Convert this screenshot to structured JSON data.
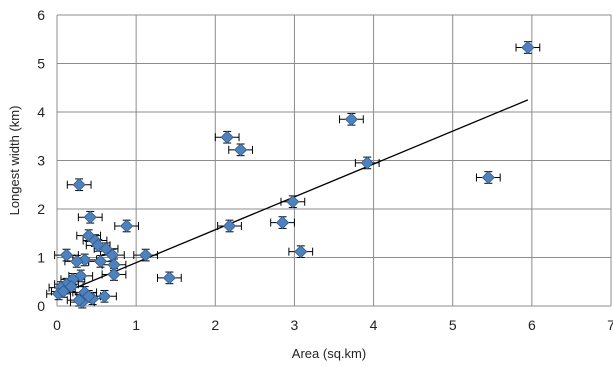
{
  "chart_data": {
    "type": "scatter",
    "title": "",
    "xlabel": "Area (sq.km)",
    "ylabel": "Longest width (km)",
    "xlim": [
      0,
      7
    ],
    "ylim": [
      0,
      6
    ],
    "xticks": [
      0,
      1,
      2,
      3,
      4,
      5,
      6,
      7
    ],
    "yticks": [
      0,
      1,
      2,
      3,
      4,
      5,
      6
    ],
    "grid": true,
    "legend": "none",
    "marker_color": "#4f81bd",
    "marker_edge": "#2f5b8f",
    "error_bar_color": "#000000",
    "trendline_color": "#000000",
    "x_error": 0.15,
    "y_error": 0.12,
    "trendline": {
      "x": [
        0.05,
        5.95
      ],
      "y": [
        0.25,
        4.25
      ]
    },
    "points": [
      {
        "x": 5.95,
        "y": 5.33
      },
      {
        "x": 3.72,
        "y": 3.85
      },
      {
        "x": 3.92,
        "y": 2.95
      },
      {
        "x": 5.45,
        "y": 2.65
      },
      {
        "x": 2.15,
        "y": 3.48
      },
      {
        "x": 2.32,
        "y": 3.22
      },
      {
        "x": 2.98,
        "y": 2.15
      },
      {
        "x": 2.85,
        "y": 1.72
      },
      {
        "x": 2.18,
        "y": 1.65
      },
      {
        "x": 3.08,
        "y": 1.12
      },
      {
        "x": 1.42,
        "y": 0.58
      },
      {
        "x": 1.12,
        "y": 1.05
      },
      {
        "x": 0.88,
        "y": 1.65
      },
      {
        "x": 0.28,
        "y": 2.5
      },
      {
        "x": 0.42,
        "y": 1.83
      },
      {
        "x": 0.4,
        "y": 1.45
      },
      {
        "x": 0.48,
        "y": 1.35
      },
      {
        "x": 0.52,
        "y": 1.25
      },
      {
        "x": 0.62,
        "y": 1.18
      },
      {
        "x": 0.7,
        "y": 1.05
      },
      {
        "x": 0.72,
        "y": 0.85
      },
      {
        "x": 0.72,
        "y": 0.65
      },
      {
        "x": 0.35,
        "y": 0.95
      },
      {
        "x": 0.25,
        "y": 0.92
      },
      {
        "x": 0.12,
        "y": 1.05
      },
      {
        "x": 0.55,
        "y": 0.92
      },
      {
        "x": 0.3,
        "y": 0.62
      },
      {
        "x": 0.2,
        "y": 0.55
      },
      {
        "x": 0.12,
        "y": 0.45
      },
      {
        "x": 0.05,
        "y": 0.38
      },
      {
        "x": 0.02,
        "y": 0.25
      },
      {
        "x": 0.08,
        "y": 0.3
      },
      {
        "x": 0.18,
        "y": 0.4
      },
      {
        "x": 0.35,
        "y": 0.28
      },
      {
        "x": 0.45,
        "y": 0.15
      },
      {
        "x": 0.32,
        "y": 0.08
      },
      {
        "x": 0.4,
        "y": 0.2
      },
      {
        "x": 0.6,
        "y": 0.2
      },
      {
        "x": 0.28,
        "y": 0.12
      }
    ]
  }
}
